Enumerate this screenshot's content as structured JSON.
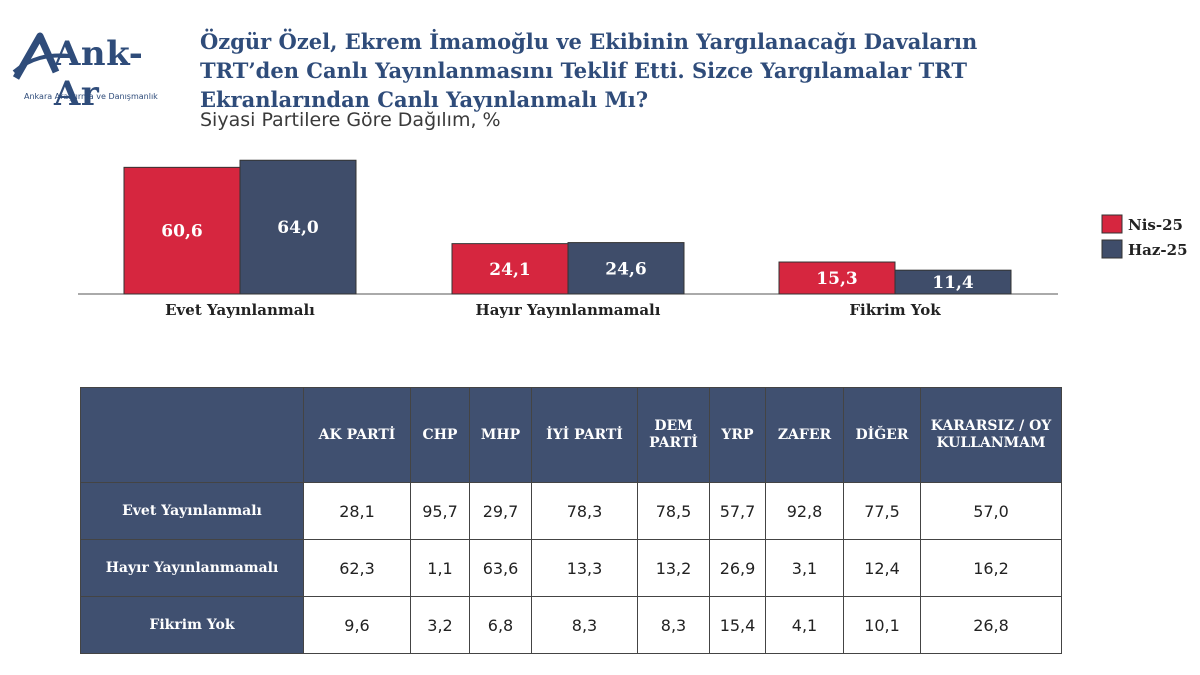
{
  "brand": {
    "logo_text": "Ank-Ar",
    "tagline": "Ankara Araştırma ve Danışmanlık"
  },
  "title_lines": [
    "Özgür Özel, Ekrem İmamoğlu ve Ekibinin Yargılanacağı Davaların",
    "TRT’den Canlı Yayınlanmasını Teklif Etti. Sizce Yargılamalar  TRT",
    "Ekranlarından Canlı Yayınlanmalı Mı?"
  ],
  "subtitle": "Siyasi Partilere Göre Dağılım, %",
  "colors": {
    "nis": "#d6263f",
    "haz": "#3f4d6a",
    "brand": "#2f4c7a",
    "table_header": "#405070"
  },
  "chart_data": {
    "type": "bar",
    "categories": [
      "Evet Yayınlanmalı",
      "Hayır Yayınlanmamalı",
      "Fikrim Yok"
    ],
    "series": [
      {
        "name": "Nis-25",
        "values": [
          60.6,
          24.1,
          15.3
        ],
        "labels": [
          "60,6",
          "24,1",
          "15,3"
        ]
      },
      {
        "name": "Haz-25",
        "values": [
          64.0,
          24.6,
          11.4
        ],
        "labels": [
          "64,0",
          "24,6",
          "11,4"
        ]
      }
    ],
    "legend_position": "right",
    "grid": false
  },
  "table": {
    "headers": [
      "AK PARTİ",
      "CHP",
      "MHP",
      "İYİ PARTİ",
      "DEM PARTİ",
      "YRP",
      "ZAFER",
      "DİĞER",
      "KARARSIZ / OY KULLANMAM"
    ],
    "rows": [
      {
        "label": "Evet Yayınlanmalı",
        "values": [
          "28,1",
          "95,7",
          "29,7",
          "78,3",
          "78,5",
          "57,7",
          "92,8",
          "77,5",
          "57,0"
        ]
      },
      {
        "label": "Hayır Yayınlanmamalı",
        "values": [
          "62,3",
          "1,1",
          "63,6",
          "13,3",
          "13,2",
          "26,9",
          "3,1",
          "12,4",
          "16,2"
        ]
      },
      {
        "label": "Fikrim Yok",
        "values": [
          "9,6",
          "3,2",
          "6,8",
          "8,3",
          "8,3",
          "15,4",
          "4,1",
          "10,1",
          "26,8"
        ]
      }
    ]
  }
}
